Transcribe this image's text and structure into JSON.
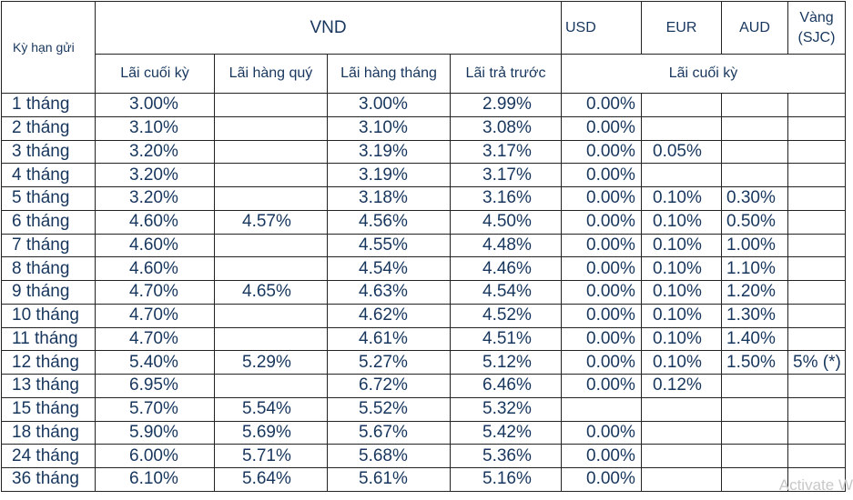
{
  "header": {
    "term_label": "Kỳ hạn gửi",
    "vnd_label": "VND",
    "usd_label": "USD",
    "eur_label": "EUR",
    "aud_label": "AUD",
    "gold_label_line1": "Vàng",
    "gold_label_line2": "(SJC)",
    "sub_vnd": [
      "Lãi cuối kỳ",
      "Lãi hàng quý",
      "Lãi hàng tháng",
      "Lãi trả trước"
    ],
    "sub_foreign": "Lãi cuối kỳ"
  },
  "rows": [
    {
      "term": "1 tháng",
      "end": "3.00%",
      "quarterly": "",
      "monthly": "3.00%",
      "prepaid": "2.99%",
      "usd": "0.00%",
      "eur": "",
      "aud": "",
      "gold": ""
    },
    {
      "term": "2 tháng",
      "end": "3.10%",
      "quarterly": "",
      "monthly": "3.10%",
      "prepaid": "3.08%",
      "usd": "0.00%",
      "eur": "",
      "aud": "",
      "gold": ""
    },
    {
      "term": "3 tháng",
      "end": "3.20%",
      "quarterly": "",
      "monthly": "3.19%",
      "prepaid": "3.17%",
      "usd": "0.00%",
      "eur": "0.05%",
      "aud": "",
      "gold": ""
    },
    {
      "term": "4 tháng",
      "end": "3.20%",
      "quarterly": "",
      "monthly": "3.19%",
      "prepaid": "3.17%",
      "usd": "0.00%",
      "eur": "",
      "aud": "",
      "gold": ""
    },
    {
      "term": "5 tháng",
      "end": "3.20%",
      "quarterly": "",
      "monthly": "3.18%",
      "prepaid": "3.16%",
      "usd": "0.00%",
      "eur": "0.10%",
      "aud": "0.30%",
      "gold": ""
    },
    {
      "term": "6 tháng",
      "end": "4.60%",
      "quarterly": "4.57%",
      "monthly": "4.56%",
      "prepaid": "4.50%",
      "usd": "0.00%",
      "eur": "0.10%",
      "aud": "0.50%",
      "gold": ""
    },
    {
      "term": "7 tháng",
      "end": "4.60%",
      "quarterly": "",
      "monthly": "4.55%",
      "prepaid": "4.48%",
      "usd": "0.00%",
      "eur": "0.10%",
      "aud": "1.00%",
      "gold": ""
    },
    {
      "term": "8 tháng",
      "end": "4.60%",
      "quarterly": "",
      "monthly": "4.54%",
      "prepaid": "4.46%",
      "usd": "0.00%",
      "eur": "0.10%",
      "aud": "1.10%",
      "gold": ""
    },
    {
      "term": "9 tháng",
      "end": "4.70%",
      "quarterly": "4.65%",
      "monthly": "4.63%",
      "prepaid": "4.54%",
      "usd": "0.00%",
      "eur": "0.10%",
      "aud": "1.20%",
      "gold": ""
    },
    {
      "term": "10 tháng",
      "end": "4.70%",
      "quarterly": "",
      "monthly": "4.62%",
      "prepaid": "4.52%",
      "usd": "0.00%",
      "eur": "0.10%",
      "aud": "1.30%",
      "gold": ""
    },
    {
      "term": "11 tháng",
      "end": "4.70%",
      "quarterly": "",
      "monthly": "4.61%",
      "prepaid": "4.51%",
      "usd": "0.00%",
      "eur": "0.10%",
      "aud": "1.40%",
      "gold": ""
    },
    {
      "term": "12 tháng",
      "end": "5.40%",
      "quarterly": "5.29%",
      "monthly": "5.27%",
      "prepaid": "5.12%",
      "usd": "0.00%",
      "eur": "0.10%",
      "aud": "1.50%",
      "gold": "5% (*)"
    },
    {
      "term": "13 tháng",
      "end": "6.95%",
      "quarterly": "",
      "monthly": "6.72%",
      "prepaid": "6.46%",
      "usd": "0.00%",
      "eur": "0.12%",
      "aud": "",
      "gold": ""
    },
    {
      "term": "15 tháng",
      "end": "5.70%",
      "quarterly": "5.54%",
      "monthly": "5.52%",
      "prepaid": "5.32%",
      "usd": "",
      "eur": "",
      "aud": "",
      "gold": ""
    },
    {
      "term": "18 tháng",
      "end": "5.90%",
      "quarterly": "5.69%",
      "monthly": "5.67%",
      "prepaid": "5.42%",
      "usd": "0.00%",
      "eur": "",
      "aud": "",
      "gold": ""
    },
    {
      "term": "24 tháng",
      "end": "6.00%",
      "quarterly": "5.71%",
      "monthly": "5.68%",
      "prepaid": "5.36%",
      "usd": "0.00%",
      "eur": "",
      "aud": "",
      "gold": ""
    },
    {
      "term": "36  tháng",
      "end": "6.10%",
      "quarterly": "5.64%",
      "monthly": "5.61%",
      "prepaid": "5.16%",
      "usd": "0.00%",
      "eur": "",
      "aud": "",
      "gold": ""
    }
  ],
  "watermark": "Activate W"
}
